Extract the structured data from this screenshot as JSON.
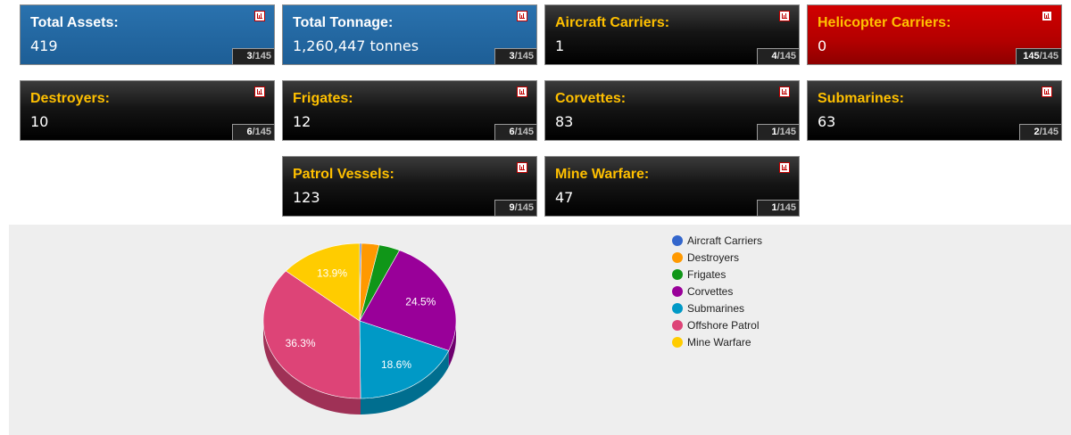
{
  "cards": [
    {
      "label": "Total Assets:",
      "value": "419",
      "rank": "3",
      "total": "/145",
      "theme": "blue"
    },
    {
      "label": "Total Tonnage:",
      "value": "1,260,447 tonnes",
      "rank": "3",
      "total": "/145",
      "theme": "blue"
    },
    {
      "label": "Aircraft Carriers:",
      "value": "1",
      "rank": "4",
      "total": "/145",
      "theme": "black"
    },
    {
      "label": "Helicopter Carriers:",
      "value": "0",
      "rank": "145",
      "total": "/145",
      "theme": "red"
    },
    {
      "label": "Destroyers:",
      "value": "10",
      "rank": "6",
      "total": "/145",
      "theme": "black"
    },
    {
      "label": "Frigates:",
      "value": "12",
      "rank": "6",
      "total": "/145",
      "theme": "black"
    },
    {
      "label": "Corvettes:",
      "value": "83",
      "rank": "1",
      "total": "/145",
      "theme": "black"
    },
    {
      "label": "Submarines:",
      "value": "63",
      "rank": "2",
      "total": "/145",
      "theme": "black"
    },
    {
      "label": "Patrol Vessels:",
      "value": "123",
      "rank": "9",
      "total": "/145",
      "theme": "black"
    },
    {
      "label": "Mine Warfare:",
      "value": "47",
      "rank": "1",
      "total": "/145",
      "theme": "black"
    }
  ],
  "card_icon": "bar-chart-icon",
  "chart_data": {
    "type": "pie",
    "style": "3d",
    "legend_placement": "right",
    "title": "",
    "labels": [
      "Aircraft Carriers",
      "Destroyers",
      "Frigates",
      "Corvettes",
      "Submarines",
      "Offshore Patrol",
      "Mine Warfare"
    ],
    "values": [
      1,
      10,
      12,
      83,
      63,
      123,
      47
    ],
    "percent_labels": [
      "",
      "",
      "",
      "24.5%",
      "18.6%",
      "36.3%",
      "13.9%"
    ],
    "colors": [
      "#3366cc",
      "#ff9900",
      "#109618",
      "#990099",
      "#0099c6",
      "#dd4477",
      "#ffcc00"
    ]
  }
}
